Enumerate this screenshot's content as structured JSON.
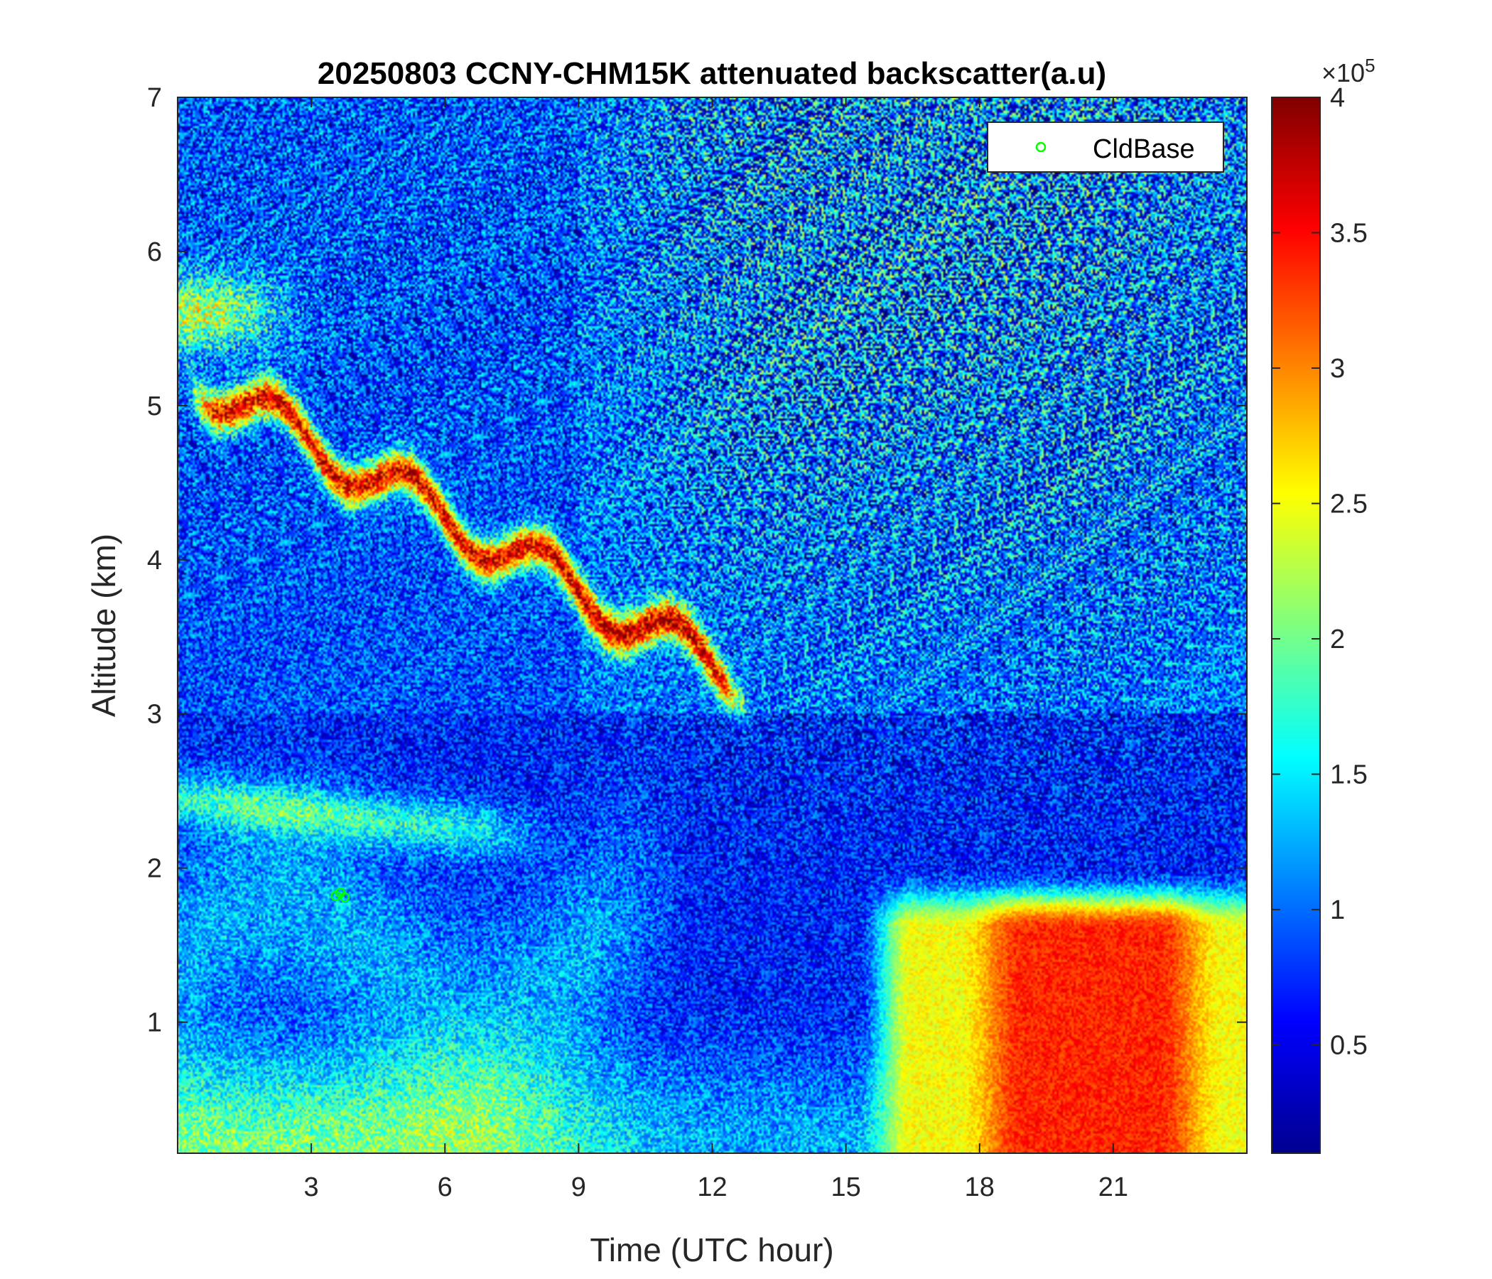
{
  "chart_data": {
    "type": "heatmap",
    "title": "20250803 CCNY-CHM15K attenuated backscatter(a.u)",
    "xlabel": "Time (UTC hour)",
    "ylabel": "Altitude (km)",
    "xlim": [
      0,
      24
    ],
    "ylim": [
      0.15,
      7
    ],
    "xticks": [
      {
        "value": 3,
        "label": "3"
      },
      {
        "value": 6,
        "label": "6"
      },
      {
        "value": 9,
        "label": "9"
      },
      {
        "value": 12,
        "label": "12"
      },
      {
        "value": 15,
        "label": "15"
      },
      {
        "value": 18,
        "label": "18"
      },
      {
        "value": 21,
        "label": "21"
      }
    ],
    "yticks": [
      {
        "value": 1,
        "label": "1"
      },
      {
        "value": 2,
        "label": "2"
      },
      {
        "value": 3,
        "label": "3"
      },
      {
        "value": 4,
        "label": "4"
      },
      {
        "value": 5,
        "label": "5"
      },
      {
        "value": 6,
        "label": "6"
      },
      {
        "value": 7,
        "label": "7"
      }
    ],
    "colorbar": {
      "colormap": "jet",
      "lim": [
        0.1,
        4
      ],
      "multiplier": "×10",
      "exponent": "5",
      "ticks": [
        {
          "value": 0.5,
          "label": "0.5"
        },
        {
          "value": 1,
          "label": "1"
        },
        {
          "value": 1.5,
          "label": "1.5"
        },
        {
          "value": 2,
          "label": "2"
        },
        {
          "value": 2.5,
          "label": "2.5"
        },
        {
          "value": 3,
          "label": "3"
        },
        {
          "value": 3.5,
          "label": "3.5"
        },
        {
          "value": 4,
          "label": "4"
        }
      ]
    },
    "legend": {
      "placement": "top-right",
      "entries": [
        {
          "label": "CldBase",
          "marker": "circle",
          "color": "#00ff00"
        }
      ]
    },
    "cloud_base_points": [
      {
        "x": 3.55,
        "y": 1.82
      },
      {
        "x": 3.65,
        "y": 1.84
      },
      {
        "x": 3.75,
        "y": 1.81
      }
    ]
  }
}
